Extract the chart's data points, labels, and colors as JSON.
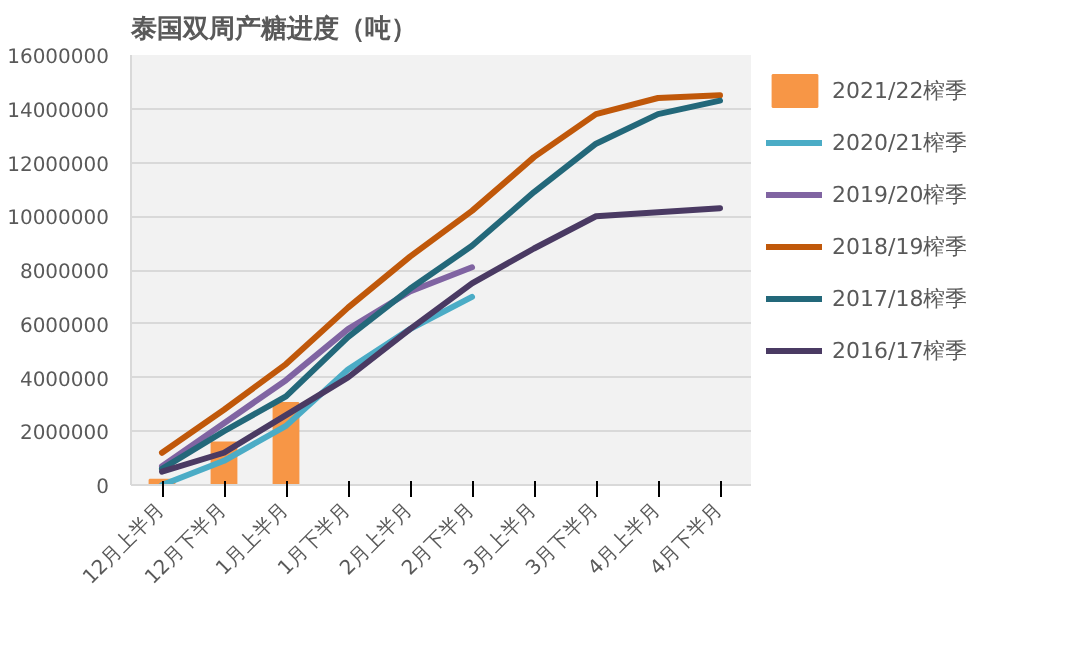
{
  "chart_data": {
    "type": "line",
    "title": "泰国双周产糖进度（吨）",
    "categories": [
      "12月上半月",
      "12月下半月",
      "1月上半月",
      "1月下半月",
      "2月上半月",
      "2月下半月",
      "3月上半月",
      "3月下半月",
      "4月上半月",
      "4月下半月"
    ],
    "series": [
      {
        "name": "2021/22榨季",
        "type": "bar",
        "color": "#f79646",
        "values": [
          200000,
          1580000,
          3050000,
          null,
          null,
          null,
          null,
          null,
          null,
          null
        ]
      },
      {
        "name": "2020/21榨季",
        "color": "#4bacc6",
        "values": [
          0,
          900000,
          2200000,
          4300000,
          5800000,
          7000000,
          null,
          null,
          null,
          null
        ]
      },
      {
        "name": "2019/20榨季",
        "color": "#8064a2",
        "values": [
          700000,
          2300000,
          3900000,
          5800000,
          7200000,
          8100000,
          null,
          null,
          null,
          null
        ]
      },
      {
        "name": "2018/19榨季",
        "color": "#c0580a",
        "values": [
          1200000,
          2800000,
          4500000,
          6600000,
          8500000,
          10200000,
          12200000,
          13800000,
          14400000,
          14500000
        ]
      },
      {
        "name": "2017/18榨季",
        "color": "#23687a",
        "values": [
          600000,
          2000000,
          3300000,
          5500000,
          7300000,
          8900000,
          10900000,
          12700000,
          13800000,
          14300000
        ]
      },
      {
        "name": "2016/17榨季",
        "color": "#4a3a63",
        "values": [
          500000,
          1200000,
          2600000,
          4000000,
          5800000,
          7500000,
          8800000,
          10000000,
          10150000,
          10300000
        ]
      }
    ],
    "ylim": [
      0,
      16000000
    ],
    "yticks": [
      0,
      2000000,
      4000000,
      6000000,
      8000000,
      10000000,
      12000000,
      14000000,
      16000000
    ],
    "grid": "y",
    "legend": "right"
  }
}
